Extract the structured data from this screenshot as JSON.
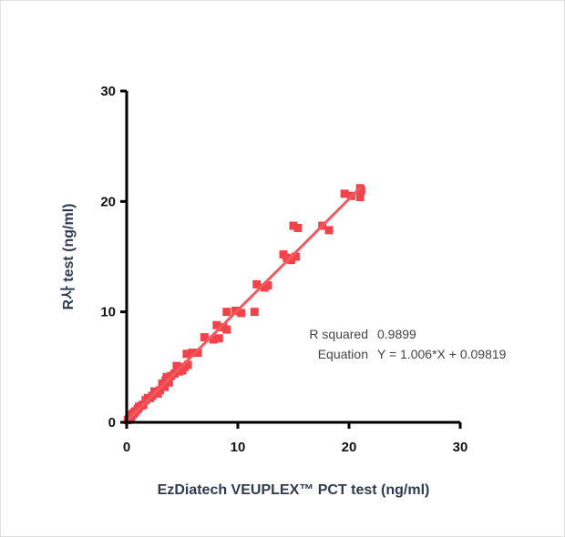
{
  "chart_data": {
    "type": "scatter",
    "xlabel": "EzDiatech VEUPLEX™ PCT test (ng/ml)",
    "ylabel": "R사 test (ng/ml)",
    "xlim": [
      0,
      30
    ],
    "ylim": [
      0,
      30
    ],
    "x_ticks": [
      "0",
      "10",
      "20",
      "30"
    ],
    "y_ticks": [
      "0",
      "10",
      "20",
      "30"
    ],
    "grid": false,
    "point_color": "#f0434a",
    "line_color": "#f25a5f",
    "fit": {
      "slope": 1.006,
      "intercept": 0.09819,
      "x_range": [
        0,
        21
      ]
    },
    "stats": [
      {
        "label": "R squared",
        "value": "0.9899"
      },
      {
        "label": "Equation",
        "value": "Y = 1.006*X + 0.09819"
      }
    ],
    "points": [
      [
        0.1,
        0.2
      ],
      [
        0.2,
        0.3
      ],
      [
        0.3,
        0.5
      ],
      [
        0.4,
        0.5
      ],
      [
        0.5,
        0.7
      ],
      [
        0.6,
        0.8
      ],
      [
        0.7,
        0.9
      ],
      [
        0.8,
        1.0
      ],
      [
        1.0,
        1.2
      ],
      [
        1.1,
        1.4
      ],
      [
        1.3,
        1.5
      ],
      [
        1.5,
        1.6
      ],
      [
        1.7,
        2.0
      ],
      [
        1.9,
        2.2
      ],
      [
        2.1,
        2.2
      ],
      [
        2.3,
        2.4
      ],
      [
        2.5,
        2.8
      ],
      [
        2.8,
        2.6
      ],
      [
        3.0,
        2.9
      ],
      [
        3.2,
        3.5
      ],
      [
        3.4,
        3.2
      ],
      [
        3.5,
        3.8
      ],
      [
        3.6,
        4.1
      ],
      [
        3.8,
        3.6
      ],
      [
        4.0,
        4.2
      ],
      [
        4.3,
        4.4
      ],
      [
        4.5,
        5.1
      ],
      [
        4.7,
        4.6
      ],
      [
        5.0,
        4.7
      ],
      [
        5.2,
        5.0
      ],
      [
        5.5,
        5.2
      ],
      [
        5.4,
        6.2
      ],
      [
        5.9,
        6.3
      ],
      [
        6.4,
        6.3
      ],
      [
        7.0,
        7.7
      ],
      [
        7.8,
        7.5
      ],
      [
        8.1,
        8.8
      ],
      [
        8.3,
        7.6
      ],
      [
        8.7,
        8.6
      ],
      [
        9.0,
        8.4
      ],
      [
        9.0,
        10.0
      ],
      [
        9.8,
        10.1
      ],
      [
        10.3,
        9.9
      ],
      [
        11.5,
        10.0
      ],
      [
        11.7,
        12.5
      ],
      [
        12.4,
        12.2
      ],
      [
        12.7,
        12.4
      ],
      [
        14.1,
        15.2
      ],
      [
        14.4,
        14.9
      ],
      [
        14.8,
        14.7
      ],
      [
        15.2,
        15.0
      ],
      [
        15.0,
        17.8
      ],
      [
        15.4,
        17.6
      ],
      [
        17.6,
        17.8
      ],
      [
        18.2,
        17.4
      ],
      [
        19.6,
        20.7
      ],
      [
        20.2,
        20.5
      ],
      [
        21.0,
        20.4
      ],
      [
        21.0,
        21.2
      ],
      [
        21.1,
        21.0
      ]
    ]
  }
}
